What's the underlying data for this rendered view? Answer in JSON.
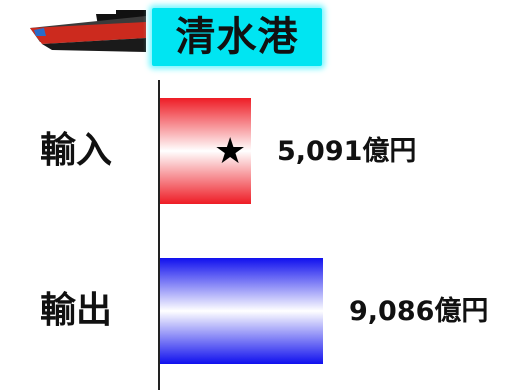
{
  "header": {
    "title": "清水港",
    "icon": "ship-icon",
    "title_background": "#00e5f2"
  },
  "chart_data": {
    "type": "bar",
    "orientation": "horizontal",
    "title": "清水港",
    "categories": [
      "輸入",
      "輸出"
    ],
    "values": [
      5091,
      9086
    ],
    "value_labels": [
      "5,091億円",
      "9,086億円"
    ],
    "unit": "億円",
    "colors": [
      "#ee1c25",
      "#1010ee"
    ],
    "marker": {
      "category": "輸入",
      "symbol": "★"
    },
    "xlim": [
      0,
      9086
    ],
    "grid": false,
    "legend": "none"
  }
}
